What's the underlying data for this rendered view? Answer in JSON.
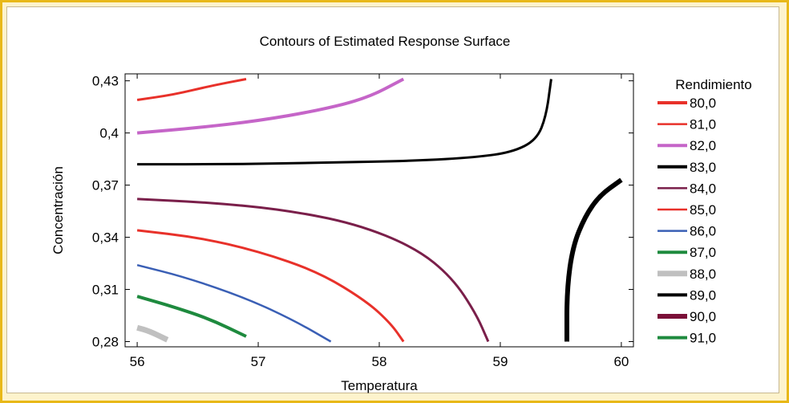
{
  "chart_data": {
    "type": "contour",
    "title": "Contours of Estimated Response Surface",
    "xlabel": "Temperatura",
    "ylabel": "Concentración",
    "xlim": [
      55.9,
      60.1
    ],
    "ylim": [
      0.277,
      0.434
    ],
    "xticks": [
      56,
      57,
      58,
      59,
      60
    ],
    "xtick_labels": [
      "56",
      "57",
      "58",
      "59",
      "60"
    ],
    "yticks": [
      0.28,
      0.31,
      0.34,
      0.37,
      0.4,
      0.43
    ],
    "ytick_labels": [
      "0,28",
      "0,31",
      "0,34",
      "0,37",
      "0,4",
      "0,43"
    ],
    "legend_title": "Rendimiento",
    "legend_position": "right",
    "legend": [
      {
        "label": "80,0",
        "color": "#e8312a",
        "width": 4
      },
      {
        "label": "81,0",
        "color": "#e8312a",
        "width": 2.5
      },
      {
        "label": "82,0",
        "color": "#c565c8",
        "width": 4
      },
      {
        "label": "83,0",
        "color": "#000000",
        "width": 4
      },
      {
        "label": "84,0",
        "color": "#7a1f4a",
        "width": 2.5
      },
      {
        "label": "85,0",
        "color": "#e8312a",
        "width": 2.5
      },
      {
        "label": "86,0",
        "color": "#3a5fb5",
        "width": 2.5
      },
      {
        "label": "87,0",
        "color": "#1e8a3e",
        "width": 4
      },
      {
        "label": "88,0",
        "color": "#c0c0c0",
        "width": 7
      },
      {
        "label": "89,0",
        "color": "#000000",
        "width": 4
      },
      {
        "label": "90,0",
        "color": "#7a1038",
        "width": 6
      },
      {
        "label": "91,0",
        "color": "#1e8a3e",
        "width": 4
      }
    ],
    "series": [
      {
        "color": "#e8312a",
        "width": 3,
        "points": [
          [
            56.0,
            0.419
          ],
          [
            56.3,
            0.422
          ],
          [
            56.6,
            0.427
          ],
          [
            56.9,
            0.431
          ]
        ]
      },
      {
        "color": "#c565c8",
        "width": 4,
        "points": [
          [
            56.0,
            0.4
          ],
          [
            56.5,
            0.403
          ],
          [
            57.0,
            0.407
          ],
          [
            57.5,
            0.413
          ],
          [
            57.9,
            0.42
          ],
          [
            58.2,
            0.431
          ]
        ]
      },
      {
        "color": "#000000",
        "width": 3,
        "points": [
          [
            56.0,
            0.382
          ],
          [
            56.8,
            0.382
          ],
          [
            57.6,
            0.383
          ],
          [
            58.3,
            0.384
          ],
          [
            58.8,
            0.386
          ],
          [
            59.1,
            0.389
          ],
          [
            59.3,
            0.396
          ],
          [
            59.38,
            0.41
          ],
          [
            59.42,
            0.431
          ]
        ]
      },
      {
        "color": "#7a1f4a",
        "width": 3,
        "points": [
          [
            56.0,
            0.362
          ],
          [
            56.6,
            0.36
          ],
          [
            57.2,
            0.356
          ],
          [
            57.8,
            0.348
          ],
          [
            58.3,
            0.334
          ],
          [
            58.6,
            0.317
          ],
          [
            58.8,
            0.296
          ],
          [
            58.9,
            0.28
          ]
        ]
      },
      {
        "color": "#e8312a",
        "width": 3,
        "points": [
          [
            56.0,
            0.344
          ],
          [
            56.5,
            0.34
          ],
          [
            57.0,
            0.332
          ],
          [
            57.5,
            0.32
          ],
          [
            57.9,
            0.303
          ],
          [
            58.1,
            0.29
          ],
          [
            58.2,
            0.28
          ]
        ]
      },
      {
        "color": "#3a5fb5",
        "width": 2.5,
        "points": [
          [
            56.0,
            0.324
          ],
          [
            56.4,
            0.317
          ],
          [
            56.9,
            0.305
          ],
          [
            57.3,
            0.292
          ],
          [
            57.6,
            0.28
          ]
        ]
      },
      {
        "color": "#1e8a3e",
        "width": 4,
        "points": [
          [
            56.0,
            0.306
          ],
          [
            56.3,
            0.3
          ],
          [
            56.6,
            0.293
          ],
          [
            56.9,
            0.283
          ]
        ]
      },
      {
        "color": "#c0c0c0",
        "width": 7,
        "points": [
          [
            56.0,
            0.288
          ],
          [
            56.1,
            0.286
          ],
          [
            56.25,
            0.281
          ]
        ]
      },
      {
        "color": "#000000",
        "width": 6,
        "points": [
          [
            59.55,
            0.28
          ],
          [
            59.55,
            0.31
          ],
          [
            59.6,
            0.335
          ],
          [
            59.7,
            0.352
          ],
          [
            59.82,
            0.364
          ],
          [
            60.0,
            0.373
          ]
        ]
      }
    ]
  }
}
